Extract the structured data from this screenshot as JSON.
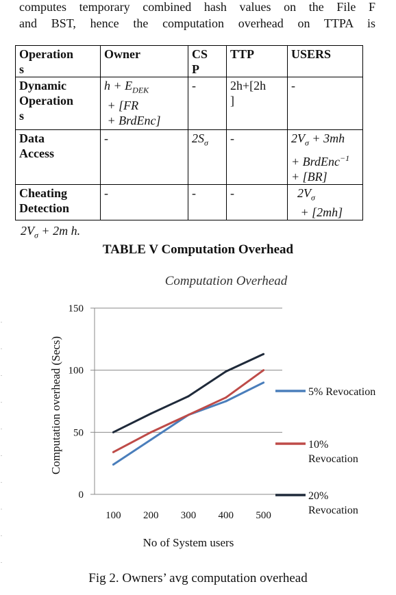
{
  "intro": {
    "line1": "computes temporary combined hash values on the File F",
    "line2": "and BST, hence the computation overhead on TTPA is"
  },
  "table": {
    "headers": [
      "Operation s",
      "Owner",
      "CS P",
      "TTP",
      "USERS"
    ],
    "rows": [
      {
        "op": "Dynamic Operation s",
        "owner": "h + E_DEK + [FR + BrdEnc]",
        "csp": "-",
        "ttp": "2h+[2h ]",
        "users": "-"
      },
      {
        "op": "Data Access",
        "owner": "-",
        "csp": "2S_σ",
        "ttp": "-",
        "users": "2V_σ + 3mh + BrdEnc^−1 + [BR]"
      },
      {
        "op": "Cheating Detection",
        "owner": "-",
        "csp": "-",
        "ttp": "-",
        "users": "2V_σ + [2mh]"
      }
    ]
  },
  "below_text": "2V_σ + 2m h.",
  "table_caption": "TABLE V Computation Overhead",
  "figure_caption": "Fig 2. Owners’ avg computation overhead",
  "chart_data": {
    "type": "line",
    "title": "Computation Overhead",
    "xlabel": "No of System users",
    "ylabel": "Computation overhead (Secs)",
    "categories": [
      "100",
      "200",
      "300",
      "400",
      "500"
    ],
    "ylim": [
      0,
      150
    ],
    "yticks": [
      0,
      50,
      100,
      150
    ],
    "grid": true,
    "legend_position": "right",
    "series": [
      {
        "name": "5% Revocation",
        "color": "#4a7ebb",
        "values": [
          24,
          44,
          64,
          75,
          90
        ]
      },
      {
        "name": "10% Revocation",
        "color": "#be4b48",
        "values": [
          34,
          50,
          64,
          78,
          100
        ]
      },
      {
        "name": "20% Revocation",
        "color": "#1f2a3a",
        "values": [
          50,
          65,
          79,
          99,
          113
        ]
      }
    ]
  }
}
